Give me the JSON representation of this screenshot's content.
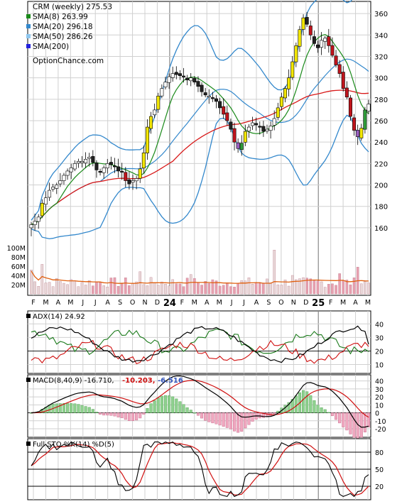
{
  "legend": {
    "title": "CRM (weekly) 275.53",
    "items": [
      {
        "label": "SMA(8) 263.99",
        "color": "#1a8a1a"
      },
      {
        "label": "SMA(20) 296.18",
        "color": "#3388cc"
      },
      {
        "label": "SMA(50) 286.26",
        "color": "#8fc7ef"
      },
      {
        "label": "SMA(200)",
        "color": "#2222dd"
      }
    ],
    "site": "OptionChance.com"
  },
  "adx_label": {
    "title": "ADX(14) 24.92"
  },
  "macd_label": {
    "title": "MACD(8,40,9) -16.710,",
    "v1": "-10.203,",
    "v2": "-6.516"
  },
  "sto_label": {
    "title": "Full STO %K(14) %D(5)"
  },
  "colors": {
    "up": "#ffffff",
    "down": "#222222",
    "bull_fill": "#f2e600",
    "bear_fill": "#c0141c",
    "purple_fill": "#9a5fc2",
    "green_fill": "#2f9a3a",
    "sma8": "#1a8a1a",
    "sma20": "#3388cc",
    "sma50": "#d81818",
    "bands": "#3388cc",
    "volume_ma": "#e06010",
    "adx": "#000000",
    "plus_di": "#1a7a1a",
    "minus_di": "#d01010",
    "macd": "#000000",
    "signal": "#d01010",
    "sto_k": "#000000",
    "sto_d": "#d01010"
  },
  "chart_data": [
    {
      "type": "candlestick",
      "title": "CRM (weekly) 275.53",
      "x_tick_labels": [
        "F",
        "M",
        "A",
        "M",
        "J",
        "J",
        "A",
        "S",
        "O",
        "N",
        "D",
        "24",
        "F",
        "M",
        "A",
        "M",
        "J",
        "J",
        "A",
        "S",
        "O",
        "N",
        "D",
        "25",
        "F",
        "M",
        "A",
        "M"
      ],
      "ylim": [
        150,
        370
      ],
      "y_ticks": [
        160,
        180,
        200,
        220,
        240,
        260,
        280,
        300,
        320,
        340,
        360
      ],
      "close": [
        163,
        166,
        170,
        183,
        188,
        195,
        198,
        200,
        204,
        209,
        213,
        216,
        220,
        222,
        222,
        224,
        226,
        221,
        214,
        212,
        216,
        220,
        219,
        217,
        213,
        212,
        204,
        201,
        204,
        206,
        215,
        230,
        254,
        264,
        270,
        283,
        290,
        296,
        301,
        304,
        303,
        302,
        301,
        298,
        300,
        296,
        292,
        287,
        284,
        283,
        281,
        278,
        272,
        266,
        260,
        252,
        240,
        234,
        239,
        250,
        254,
        258,
        256,
        254,
        250,
        252,
        255,
        262,
        272,
        282,
        290,
        300,
        315,
        330,
        345,
        356,
        350,
        340,
        332,
        328,
        335,
        337,
        330,
        321,
        312,
        304,
        290,
        282,
        264,
        251,
        245,
        253,
        270,
        275.53
      ],
      "sma8_last": 263.99,
      "sma20_last": 296.18,
      "sma50_last": 286.26,
      "volume_ticks": [
        "100M",
        "80M",
        "60M",
        "40M",
        "20M"
      ],
      "volume_ylim": [
        0,
        120
      ]
    },
    {
      "type": "line",
      "title": "ADX(14) 24.92",
      "series": [
        {
          "name": "ADX(14)",
          "last": 24.92
        }
      ],
      "ylim": [
        5,
        48
      ],
      "y_ticks": [
        10,
        20,
        30,
        40
      ]
    },
    {
      "type": "line",
      "title": "MACD(8,40,9)",
      "series": [
        {
          "name": "MACD",
          "last": -16.71
        },
        {
          "name": "Signal",
          "last": -10.203
        },
        {
          "name": "Histogram",
          "last": -6.516
        }
      ],
      "ylim": [
        -28,
        45
      ],
      "y_ticks": [
        40,
        30,
        20,
        10,
        0,
        -10,
        -20
      ]
    },
    {
      "type": "line",
      "title": "Full STO %K(14) %D(5)",
      "series": [
        {
          "name": "%K"
        },
        {
          "name": "%D"
        }
      ],
      "ylim": [
        0,
        100
      ],
      "y_ticks": [
        80,
        50,
        20
      ]
    }
  ]
}
